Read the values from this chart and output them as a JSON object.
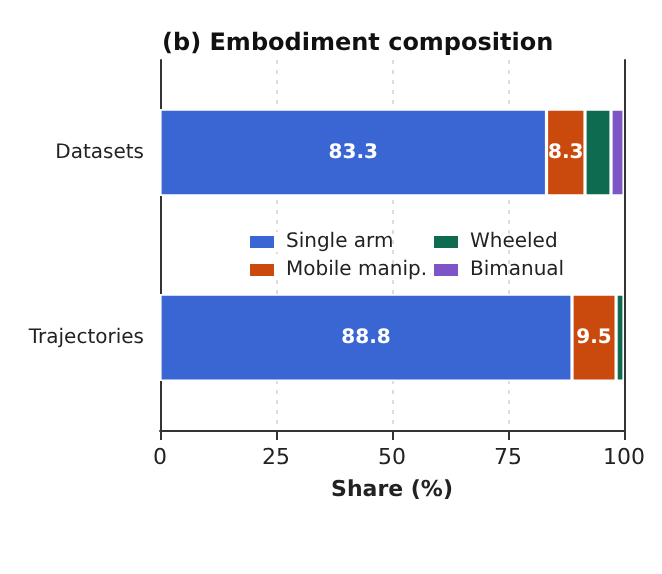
{
  "chart_data": {
    "type": "bar",
    "orientation": "horizontal",
    "stacked": true,
    "title": "(b) Embodiment composition",
    "xlabel": "Share (%)",
    "categories": [
      "Datasets",
      "Trajectories"
    ],
    "series": [
      {
        "name": "Single arm",
        "color": "#3a66d4",
        "values": [
          83.3,
          88.8
        ],
        "value_labels": [
          "83.3",
          "88.8"
        ]
      },
      {
        "name": "Mobile manip.",
        "color": "#c94a0c",
        "values": [
          8.3,
          9.5
        ],
        "value_labels": [
          "8.3",
          "9.5"
        ]
      },
      {
        "name": "Wheeled",
        "color": "#0f6b4f",
        "values": [
          5.6,
          1.7
        ]
      },
      {
        "name": "Bimanual",
        "color": "#7d55c7",
        "values": [
          2.8,
          null
        ]
      }
    ],
    "xlim": [
      0,
      100
    ],
    "xticks": [
      0,
      25,
      50,
      75,
      100
    ],
    "grid": "x",
    "legend": "center"
  }
}
